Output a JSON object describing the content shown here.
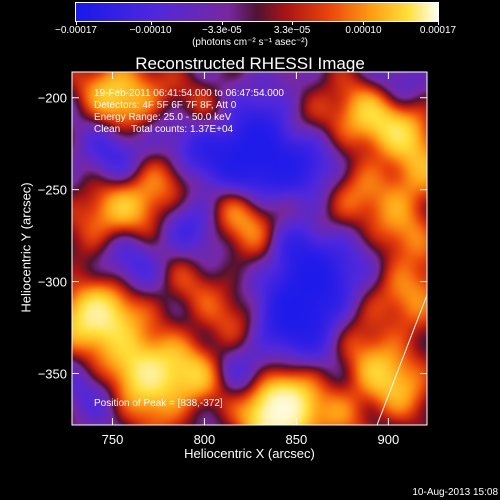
{
  "chart_data": {
    "type": "heatmap",
    "title": "Reconstructed RHESSI Image",
    "xlabel": "Heliocentric X (arcsec)",
    "ylabel": "Heliocentric Y (arcsec)",
    "xlim": [
      728,
      921
    ],
    "ylim": [
      -378,
      -186
    ],
    "x_ticks": [
      "750",
      "800",
      "850",
      "900"
    ],
    "y_ticks": [
      "-200",
      "-250",
      "-300",
      "-350"
    ],
    "colorbar": {
      "range": [
        -0.00017,
        0.00017
      ],
      "tick_labels": [
        "-0.00017",
        "-0.00010",
        "-3.3e-05",
        "3.3e-05",
        "0.00010",
        "0.00017"
      ],
      "unit_label": "(photons cm⁻² s⁻¹ asec⁻²)",
      "colormap": "blue-purple-red-yellow-white"
    },
    "annotations": [
      "19-Feb-2011 06:41:54.000 to 06:47:54.000",
      "Detectors: 4F 5F 6F 7F 8F, Att 0",
      "Energy Range: 25.0 - 50.0 keV",
      "Clean    Total counts: 1.37E+04",
      "Position of Peak = [838,-372]"
    ],
    "peak": {
      "x": 838,
      "y": -372
    },
    "bright_regions": [
      {
        "x": 838,
        "y": -372,
        "level": 1.0
      },
      {
        "x": 843,
        "y": -368,
        "level": 0.9
      },
      {
        "x": 795,
        "y": -352,
        "level": 0.75
      },
      {
        "x": 772,
        "y": -350,
        "level": 0.7
      },
      {
        "x": 748,
        "y": -320,
        "level": 0.8
      },
      {
        "x": 735,
        "y": -318,
        "level": 0.75
      },
      {
        "x": 760,
        "y": -345,
        "level": 0.6
      },
      {
        "x": 742,
        "y": -265,
        "level": 0.55
      },
      {
        "x": 763,
        "y": -258,
        "level": 0.55
      },
      {
        "x": 750,
        "y": -196,
        "level": 0.75
      },
      {
        "x": 768,
        "y": -205,
        "level": 0.65
      },
      {
        "x": 778,
        "y": -246,
        "level": 0.5
      },
      {
        "x": 815,
        "y": -262,
        "level": 0.55
      },
      {
        "x": 832,
        "y": -270,
        "level": 0.5
      },
      {
        "x": 888,
        "y": -210,
        "level": 0.85
      },
      {
        "x": 910,
        "y": -218,
        "level": 0.75
      },
      {
        "x": 915,
        "y": -245,
        "level": 0.6
      },
      {
        "x": 880,
        "y": -255,
        "level": 0.55
      },
      {
        "x": 905,
        "y": -275,
        "level": 0.55
      },
      {
        "x": 915,
        "y": -305,
        "level": 0.65
      },
      {
        "x": 880,
        "y": -322,
        "level": 0.6
      },
      {
        "x": 896,
        "y": -345,
        "level": 0.55
      },
      {
        "x": 908,
        "y": -358,
        "level": 0.55
      },
      {
        "x": 815,
        "y": -322,
        "level": 0.4
      },
      {
        "x": 790,
        "y": -302,
        "level": 0.35
      },
      {
        "x": 800,
        "y": -205,
        "level": 0.3
      },
      {
        "x": 860,
        "y": -205,
        "level": 0.3
      },
      {
        "x": 875,
        "y": -372,
        "level": 0.45
      },
      {
        "x": 770,
        "y": -372,
        "level": 0.35
      }
    ],
    "dark_regions": [
      {
        "x": 823,
        "y": -228,
        "level": -0.9
      },
      {
        "x": 836,
        "y": -242,
        "level": -0.75
      },
      {
        "x": 800,
        "y": -232,
        "level": -0.6
      },
      {
        "x": 855,
        "y": -302,
        "level": -0.95
      },
      {
        "x": 845,
        "y": -322,
        "level": -0.8
      },
      {
        "x": 868,
        "y": -322,
        "level": -0.7
      },
      {
        "x": 795,
        "y": -268,
        "level": -0.6
      },
      {
        "x": 850,
        "y": -278,
        "level": -0.55
      },
      {
        "x": 760,
        "y": -290,
        "level": -0.45
      },
      {
        "x": 750,
        "y": -232,
        "level": -0.5
      },
      {
        "x": 860,
        "y": -235,
        "level": -0.55
      },
      {
        "x": 820,
        "y": -350,
        "level": -0.45
      },
      {
        "x": 880,
        "y": -290,
        "level": -0.5
      },
      {
        "x": 835,
        "y": -205,
        "level": -0.45
      },
      {
        "x": 775,
        "y": -215,
        "level": -0.45
      },
      {
        "x": 905,
        "y": -195,
        "level": -0.35
      },
      {
        "x": 740,
        "y": -360,
        "level": -0.3
      }
    ]
  },
  "footer": {
    "timestamp": "10-Aug-2013 15:08"
  }
}
